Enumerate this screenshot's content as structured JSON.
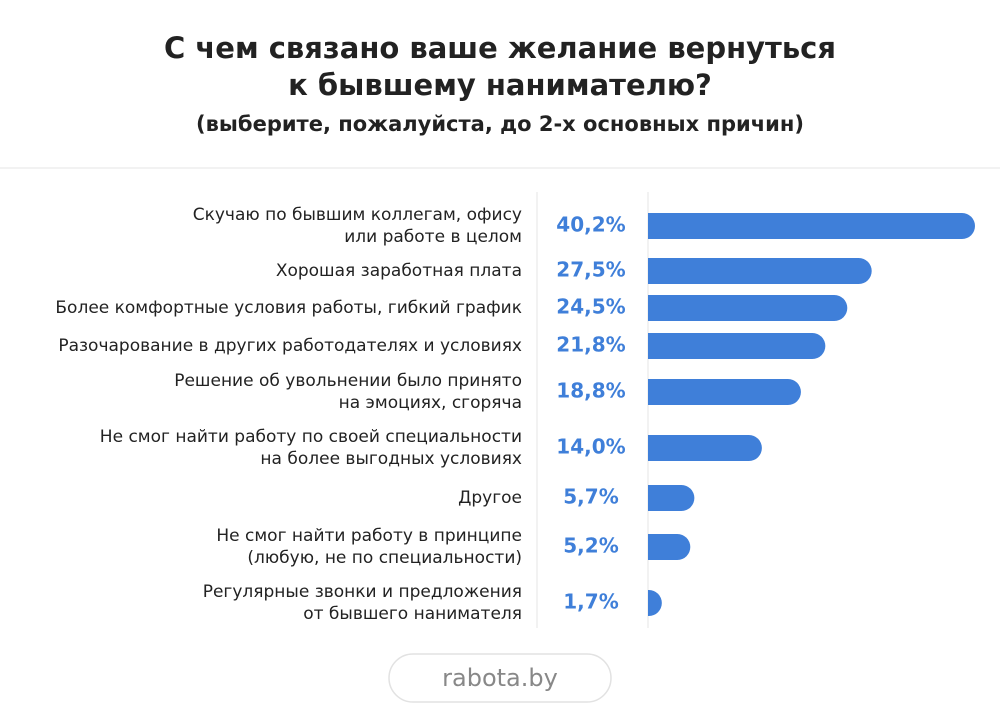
{
  "chart_data": {
    "type": "hbar",
    "title": [
      "С чем связано ваше желание вернуться",
      "к бывшему нанимателю?"
    ],
    "subtitle": "(выберите, пожалуйста, до 2-х основных причин)",
    "categories": [
      [
        "Скучаю по бывшим коллегам, офису",
        "или работе в целом"
      ],
      [
        "Хорошая заработная плата"
      ],
      [
        "Более комфортные условия работы, гибкий график"
      ],
      [
        "Разочарование в других работодателях и условиях"
      ],
      [
        "Решение об увольнении было принято",
        "на эмоциях, сгоряча"
      ],
      [
        "Не смог найти работу по своей специальности",
        "на более выгодных условиях"
      ],
      [
        "Другое"
      ],
      [
        "Не смог найти работу в принципе",
        "(любую, не по специальности)"
      ],
      [
        "Регулярные звонки и предложения",
        "от бывшего нанимателя"
      ]
    ],
    "values": [
      40.2,
      27.5,
      24.5,
      21.8,
      18.8,
      14.0,
      5.7,
      5.2,
      1.7
    ],
    "value_labels": [
      "40,2%",
      "27,5%",
      "24,5%",
      "21,8%",
      "18,8%",
      "14,0%",
      "5,7%",
      "5,2%",
      "1,7%"
    ],
    "color": "#3f7fd9",
    "source": "rabota.by"
  }
}
